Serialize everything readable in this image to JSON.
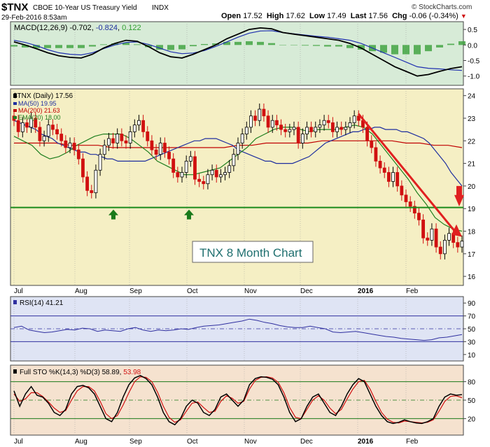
{
  "header": {
    "symbol": "$TNX",
    "name": "CBOE 10-Year US Treasury Yield",
    "exchange": "INDX",
    "datetime": "29-Feb-2016 8:53am",
    "open_label": "Open",
    "open": "17.52",
    "high_label": "High",
    "high": "17.62",
    "low_label": "Low",
    "low": "17.49",
    "last_label": "Last",
    "last": "17.56",
    "chg_label": "Chg",
    "chg": "-0.06 (-0.34%)",
    "down_glyph": "▼",
    "copyright": "© StockCharts.com"
  },
  "macd_legend": {
    "label": "MACD(12,26,9)",
    "v1": "-0.702",
    "v2": "-0.824",
    "v3": "0.122"
  },
  "price_legend": {
    "main": "$TNX (Daily) 17.56",
    "ma50": "MA(50) 19.95",
    "ma200": "MA(200) 21.63",
    "ema20": "EMA(20) 18.00"
  },
  "annotation": "TNX 8 Month Chart",
  "rsi_legend": "RSI(14) 41.21",
  "sto_legend": {
    "label": "Full STO %K(14,3) %D(3)",
    "k": "58.89",
    "d": "53.98"
  },
  "x_labels": [
    "Jul",
    "Aug",
    "Sep",
    "Oct",
    "Nov",
    "Dec",
    "2016",
    "Feb"
  ],
  "macd_ticks": [
    "0.5",
    "0.0",
    "-0.5",
    "-1.0"
  ],
  "price_ticks": [
    "24",
    "23",
    "22",
    "21",
    "20",
    "19",
    "18",
    "17",
    "16"
  ],
  "rsi_ticks": [
    "90",
    "70",
    "50",
    "30",
    "10"
  ],
  "sto_ticks": [
    "80",
    "50",
    "20"
  ],
  "colors": {
    "macd_bg": "#d7ebd7",
    "price_bg": "#f5efc4",
    "rsi_bg": "#dfe4f4",
    "sto_bg": "#f5e2cf",
    "ma50": "#1f2f9f",
    "ma200": "#c00000",
    "ema20": "#1f7f1f",
    "support": "#1a8a1a",
    "trend_arrow": "#e02020",
    "candle_up": "#000000",
    "candle_down": "#d01010",
    "annotation_text": "#1f6f6f"
  },
  "chart_data": {
    "type": "candlestick",
    "symbol": "$TNX",
    "period": "Daily",
    "x_axis_labels": [
      "Jul",
      "Aug",
      "Sep",
      "Oct",
      "Nov",
      "Dec",
      "2016",
      "Feb"
    ],
    "price_range": [
      15.6,
      24.3
    ],
    "support_level": 19.05,
    "close": [
      22.9,
      22.4,
      22.8,
      22.6,
      23.0,
      22.6,
      22.0,
      22.2,
      22.7,
      22.5,
      22.3,
      22.0,
      21.7,
      21.9,
      21.6,
      21.2,
      20.4,
      19.8,
      19.7,
      20.7,
      21.4,
      21.8,
      22.1,
      21.9,
      22.3,
      22.0,
      21.9,
      22.4,
      22.7,
      22.9,
      22.4,
      22.0,
      21.6,
      21.4,
      21.9,
      21.5,
      21.2,
      20.6,
      20.4,
      20.6,
      21.1,
      21.3,
      20.3,
      20.2,
      20.1,
      20.5,
      20.7,
      20.4,
      20.5,
      20.6,
      20.9,
      21.4,
      21.9,
      22.3,
      22.6,
      23.1,
      22.9,
      23.4,
      23.1,
      22.6,
      22.9,
      22.7,
      22.5,
      22.4,
      22.5,
      22.6,
      21.9,
      22.3,
      22.6,
      22.4,
      22.6,
      22.7,
      22.9,
      22.8,
      22.4,
      22.6,
      22.5,
      22.6,
      22.8,
      23.1,
      22.9,
      22.6,
      22.0,
      21.7,
      21.1,
      20.8,
      20.6,
      20.2,
      20.6,
      20.0,
      19.6,
      19.3,
      19.1,
      18.8,
      18.5,
      17.7,
      17.6,
      18.1,
      17.3,
      17.0,
      17.6,
      17.9,
      17.5,
      17.3,
      17.56
    ],
    "ma50": [
      22.9,
      22.8,
      22.7,
      22.6,
      22.5,
      22.3,
      22.2,
      22.1,
      21.9,
      21.8,
      21.7,
      21.6,
      21.5,
      21.5,
      21.4,
      21.4,
      21.3,
      21.2,
      21.2,
      21.1,
      21.1,
      21.1,
      21.1,
      21.1,
      21.1,
      21.2,
      21.3,
      21.4,
      21.5,
      21.6,
      21.7,
      21.8,
      21.9,
      22.0,
      22.0,
      22.1,
      22.1,
      22.1,
      22.0,
      21.9,
      21.8,
      21.6,
      21.5,
      21.4,
      21.3,
      21.2,
      21.1,
      21.1,
      21.0,
      21.0,
      21.0,
      21.0,
      21.1,
      21.2,
      21.3,
      21.5,
      21.7,
      21.9,
      22.0,
      22.1,
      22.2,
      22.3,
      22.4,
      22.4,
      22.5,
      22.5,
      22.6,
      22.6,
      22.5,
      22.5,
      22.5,
      22.4,
      22.4,
      22.3,
      22.2,
      22.1,
      21.9,
      21.6,
      21.3,
      21.0,
      20.6,
      20.3,
      20.0
    ],
    "ma200": [
      21.9,
      21.9,
      21.9,
      21.9,
      21.8,
      21.8,
      21.8,
      21.7,
      21.7,
      21.7,
      21.7,
      21.7,
      21.7,
      21.7,
      21.7,
      21.7,
      21.8,
      21.8,
      21.9,
      21.9,
      21.9,
      21.9,
      22.0,
      22.0,
      22.0,
      22.0,
      22.0,
      22.0,
      21.9,
      21.9,
      21.8,
      21.8,
      21.7
    ],
    "ema20": [
      22.2,
      22.0,
      21.8,
      21.4,
      21.2,
      21.3,
      21.5,
      21.8,
      22.0,
      22.2,
      22.3,
      22.3,
      22.3,
      22.1,
      21.8,
      21.5,
      21.1,
      20.9,
      20.7,
      20.5,
      20.5,
      20.6,
      20.7,
      20.8,
      21.1,
      21.4,
      21.7,
      22.1,
      22.3,
      22.5,
      22.6,
      22.6,
      22.5,
      22.4,
      22.5,
      22.5,
      22.5,
      22.6,
      22.7,
      22.6,
      22.3,
      21.8,
      21.3,
      20.8,
      20.3,
      19.7,
      19.2,
      18.6,
      18.3,
      18.1,
      18.0
    ],
    "macd": {
      "macd_line": [
        0.1,
        0.0,
        -0.12,
        -0.25,
        -0.35,
        -0.4,
        -0.42,
        -0.3,
        -0.1,
        0.05,
        0.15,
        0.12,
        -0.05,
        -0.25,
        -0.38,
        -0.42,
        -0.3,
        -0.15,
        0.0,
        0.2,
        0.35,
        0.5,
        0.55,
        0.52,
        0.4,
        0.35,
        0.3,
        0.25,
        0.2,
        0.15,
        0.05,
        -0.1,
        -0.3,
        -0.5,
        -0.7,
        -0.85,
        -1.0,
        -0.95,
        -0.85,
        -0.76,
        -0.7
      ],
      "signal_line": [
        0.15,
        0.08,
        -0.02,
        -0.15,
        -0.25,
        -0.3,
        -0.32,
        -0.25,
        -0.12,
        0.0,
        0.08,
        0.1,
        0.02,
        -0.1,
        -0.22,
        -0.28,
        -0.26,
        -0.18,
        -0.05,
        0.1,
        0.25,
        0.38,
        0.45,
        0.46,
        0.4,
        0.36,
        0.32,
        0.28,
        0.25,
        0.2,
        0.15,
        0.05,
        -0.1,
        -0.25,
        -0.4,
        -0.55,
        -0.7,
        -0.75,
        -0.77,
        -0.8,
        -0.82
      ]
    },
    "rsi": [
      52,
      54,
      48,
      46,
      44,
      45,
      47,
      49,
      48,
      51,
      50,
      46,
      48,
      47,
      46,
      50,
      52,
      48,
      46,
      48,
      47,
      48,
      50,
      49,
      52,
      54,
      55,
      56,
      58,
      60,
      62,
      65,
      63,
      60,
      58,
      55,
      53,
      52,
      52,
      54,
      52,
      50,
      45,
      44,
      45,
      46,
      44,
      42,
      40,
      38,
      37,
      35,
      34,
      33,
      32,
      33,
      36,
      37,
      39,
      41
    ],
    "stochastics": {
      "k": [
        65,
        40,
        60,
        72,
        58,
        55,
        45,
        30,
        25,
        35,
        60,
        72,
        74,
        70,
        60,
        40,
        20,
        15,
        30,
        55,
        75,
        86,
        90,
        85,
        75,
        55,
        30,
        15,
        10,
        20,
        40,
        50,
        45,
        30,
        25,
        35,
        55,
        60,
        50,
        40,
        50,
        75,
        85,
        88,
        87,
        84,
        75,
        55,
        30,
        15,
        20,
        40,
        55,
        60,
        45,
        30,
        25,
        40,
        60,
        75,
        85,
        80,
        60,
        40,
        25,
        15,
        12,
        14,
        18,
        15,
        13,
        12,
        15,
        20,
        40,
        55,
        60,
        58,
        59
      ],
      "d": [
        60,
        48,
        52,
        62,
        62,
        56,
        47,
        37,
        30,
        33,
        50,
        65,
        72,
        72,
        65,
        48,
        28,
        20,
        25,
        42,
        62,
        80,
        88,
        87,
        80,
        63,
        40,
        22,
        14,
        18,
        32,
        45,
        47,
        38,
        30,
        32,
        48,
        57,
        53,
        45,
        48,
        68,
        82,
        87,
        88,
        86,
        79,
        62,
        38,
        22,
        20,
        35,
        50,
        57,
        50,
        37,
        28,
        35,
        52,
        68,
        80,
        82,
        68,
        48,
        30,
        19,
        14,
        13,
        16,
        15,
        14,
        13,
        14,
        18,
        32,
        48,
        56,
        57,
        54
      ]
    },
    "legend": [
      "$TNX (Daily) 17.56",
      "MA(50) 19.95",
      "MA(200) 21.63",
      "EMA(20) 18.00"
    ]
  }
}
